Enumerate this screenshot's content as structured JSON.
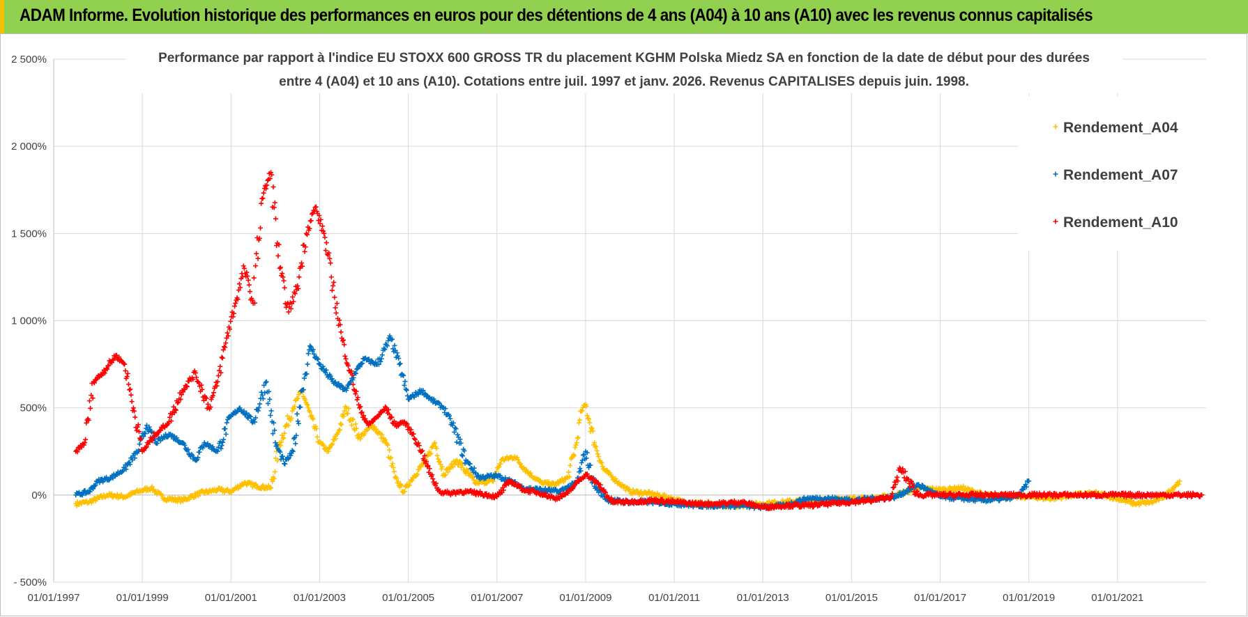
{
  "banner": {
    "title": "ADAM Informe. Evolution historique des performances en euros pour des détentions de 4 ans (A04) à 10 ans (A10) avec les revenus connus capitalisés",
    "bg_color": "#92d050",
    "accent_color": "#f2c200"
  },
  "chart_data": {
    "type": "scatter",
    "title_lines": [
      "Performance par rapport à l'indice EU STOXX 600 GROSS TR  du placement KGHM Polska Miedz SA en fonction de la date de début pour des durées",
      "entre 4 (A04) et 10 ans (A10).  Cotations entre juil. 1997 et janv. 2026. Revenus CAPITALISES depuis juin. 1998."
    ],
    "xlabel": "",
    "ylabel": "",
    "xlim": [
      1997.0,
      2023.0
    ],
    "ylim": [
      -500,
      2500
    ],
    "grid": true,
    "legend_position": "top-right",
    "y_ticks": [
      {
        "value": 2500,
        "label": "2 500%"
      },
      {
        "value": 2000,
        "label": "2 000%"
      },
      {
        "value": 1500,
        "label": "1 500%"
      },
      {
        "value": 1000,
        "label": "1 000%"
      },
      {
        "value": 500,
        "label": "500%"
      },
      {
        "value": 0,
        "label": "0%"
      },
      {
        "value": -500,
        "label": "- 500%"
      }
    ],
    "x_ticks": [
      {
        "value": 1997,
        "label": "01/01/1997"
      },
      {
        "value": 1999,
        "label": "01/01/1999"
      },
      {
        "value": 2001,
        "label": "01/01/2001"
      },
      {
        "value": 2003,
        "label": "01/01/2003"
      },
      {
        "value": 2005,
        "label": "01/01/2005"
      },
      {
        "value": 2007,
        "label": "01/01/2007"
      },
      {
        "value": 2009,
        "label": "01/01/2009"
      },
      {
        "value": 2011,
        "label": "01/01/2011"
      },
      {
        "value": 2013,
        "label": "01/01/2013"
      },
      {
        "value": 2015,
        "label": "01/01/2015"
      },
      {
        "value": 2017,
        "label": "01/01/2017"
      },
      {
        "value": 2019,
        "label": "01/01/2019"
      },
      {
        "value": 2021,
        "label": "01/01/2021"
      }
    ],
    "series": [
      {
        "name": "Rendement_A04",
        "color": "#ffc000",
        "x": [
          1997.5,
          1997.8,
          1998.2,
          1998.6,
          1998.9,
          1999.2,
          1999.5,
          1999.9,
          2000.3,
          2000.7,
          2001.0,
          2001.3,
          2001.6,
          2001.9,
          2002.1,
          2002.4,
          2002.6,
          2002.8,
          2003.0,
          2003.2,
          2003.4,
          2003.6,
          2003.9,
          2004.2,
          2004.5,
          2004.7,
          2004.9,
          2005.1,
          2005.4,
          2005.6,
          2005.8,
          2006.1,
          2006.5,
          2006.9,
          2007.1,
          2007.4,
          2007.7,
          2008.0,
          2008.3,
          2008.6,
          2008.8,
          2008.9,
          2009.0,
          2009.2,
          2009.4,
          2009.7,
          2010.0,
          2010.4,
          2010.8,
          2011.2,
          2011.6,
          2012.0,
          2012.5,
          2013.0,
          2013.5,
          2014.0,
          2014.5,
          2015.0,
          2015.5,
          2016.0,
          2016.5,
          2017.0,
          2017.5,
          2018.0,
          2018.5,
          2019.0,
          2019.5,
          2020.0,
          2020.5,
          2021.0,
          2021.4,
          2021.8,
          2022.1,
          2022.4
        ],
        "y": [
          -50,
          -40,
          0,
          -10,
          20,
          40,
          -20,
          -30,
          10,
          30,
          20,
          70,
          50,
          40,
          300,
          500,
          600,
          450,
          300,
          250,
          350,
          500,
          330,
          400,
          300,
          100,
          20,
          100,
          200,
          300,
          120,
          200,
          70,
          80,
          200,
          220,
          130,
          70,
          60,
          100,
          300,
          480,
          520,
          300,
          150,
          80,
          20,
          10,
          -10,
          -40,
          -50,
          -60,
          -60,
          -50,
          -40,
          -30,
          -30,
          -20,
          -20,
          0,
          40,
          30,
          40,
          0,
          -10,
          -10,
          -20,
          0,
          10,
          -20,
          -50,
          -40,
          0,
          80
        ]
      },
      {
        "name": "Rendement_A07",
        "color": "#0070c0",
        "x": [
          1997.5,
          1997.8,
          1998.0,
          1998.3,
          1998.6,
          1998.9,
          1999.1,
          1999.3,
          1999.6,
          1999.9,
          2000.2,
          2000.4,
          2000.7,
          2001.0,
          2001.2,
          2001.5,
          2001.8,
          2002.0,
          2002.2,
          2002.4,
          2002.6,
          2002.8,
          2003.0,
          2003.3,
          2003.6,
          2003.8,
          2004.0,
          2004.3,
          2004.6,
          2004.8,
          2005.0,
          2005.3,
          2005.5,
          2005.8,
          2006.0,
          2006.3,
          2006.6,
          2007.0,
          2007.3,
          2007.6,
          2008.0,
          2008.4,
          2008.8,
          2009.0,
          2009.2,
          2009.5,
          2010.0,
          2010.5,
          2011.0,
          2011.5,
          2012.0,
          2012.5,
          2013.0,
          2013.5,
          2014.0,
          2014.5,
          2015.0,
          2015.5,
          2016.0,
          2016.5,
          2017.0,
          2017.5,
          2018.0,
          2018.5,
          2018.8,
          2019.0
        ],
        "y": [
          0,
          20,
          80,
          100,
          150,
          250,
          400,
          300,
          350,
          300,
          200,
          300,
          250,
          450,
          500,
          420,
          650,
          300,
          180,
          250,
          600,
          850,
          750,
          650,
          600,
          700,
          780,
          750,
          900,
          750,
          550,
          600,
          550,
          500,
          400,
          200,
          100,
          110,
          80,
          40,
          30,
          20,
          70,
          250,
          50,
          -30,
          -40,
          -40,
          -50,
          -60,
          -60,
          -60,
          -70,
          -60,
          -20,
          -20,
          -30,
          -20,
          -10,
          60,
          -10,
          -20,
          -30,
          -20,
          0,
          80
        ]
      },
      {
        "name": "Rendement_A10",
        "color": "#ff0000",
        "x": [
          1997.5,
          1997.7,
          1997.9,
          1998.1,
          1998.4,
          1998.6,
          1998.8,
          1999.0,
          1999.3,
          1999.6,
          1999.9,
          2000.2,
          2000.5,
          2000.7,
          2000.9,
          2001.1,
          2001.3,
          2001.5,
          2001.7,
          2001.9,
          2002.1,
          2002.3,
          2002.5,
          2002.7,
          2002.9,
          2003.1,
          2003.3,
          2003.5,
          2003.7,
          2003.9,
          2004.1,
          2004.3,
          2004.5,
          2004.7,
          2004.9,
          2005.1,
          2005.3,
          2005.5,
          2005.7,
          2005.9,
          2006.2,
          2006.6,
          2007.0,
          2007.3,
          2007.6,
          2008.0,
          2008.3,
          2008.6,
          2008.8,
          2009.0,
          2009.3,
          2009.6,
          2010.0,
          2010.5,
          2011.0,
          2011.5,
          2012.0,
          2012.5,
          2013.0,
          2013.5,
          2014.0,
          2014.5,
          2015.0,
          2015.5,
          2015.9,
          2016.1,
          2016.5,
          2017.0,
          2018.0,
          2019.0,
          2020.0,
          2021.0,
          2022.0,
          2022.9
        ],
        "y": [
          250,
          300,
          650,
          700,
          800,
          750,
          500,
          250,
          350,
          420,
          600,
          700,
          500,
          650,
          900,
          1100,
          1300,
          1100,
          1700,
          1850,
          1300,
          1050,
          1200,
          1500,
          1650,
          1500,
          1200,
          900,
          700,
          500,
          400,
          450,
          500,
          400,
          420,
          350,
          250,
          120,
          20,
          10,
          20,
          10,
          -10,
          80,
          30,
          10,
          -20,
          10,
          70,
          120,
          60,
          -40,
          -40,
          -30,
          -40,
          -50,
          -50,
          -40,
          -70,
          -60,
          -60,
          -50,
          -40,
          -30,
          -10,
          150,
          0,
          0,
          0,
          0,
          0,
          0,
          0,
          0
        ]
      }
    ]
  }
}
